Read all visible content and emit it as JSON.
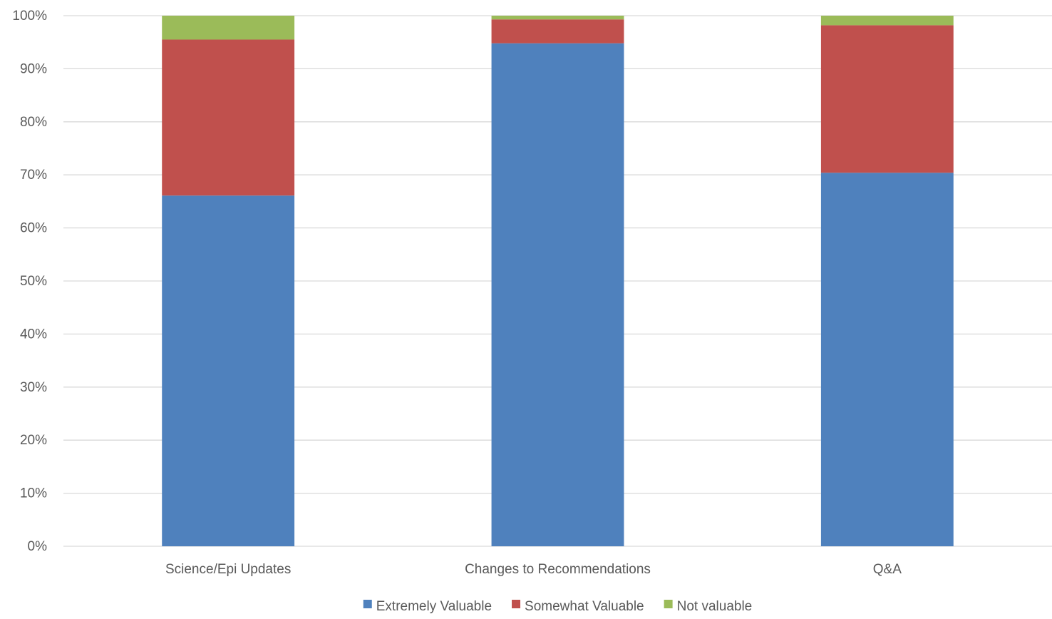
{
  "chart_data": {
    "type": "bar",
    "stacked": true,
    "percent_stacked": true,
    "title": "",
    "xlabel": "",
    "ylabel": "",
    "ylim": [
      0,
      100
    ],
    "y_ticks": [
      "0%",
      "10%",
      "20%",
      "30%",
      "40%",
      "50%",
      "60%",
      "70%",
      "80%",
      "90%",
      "100%"
    ],
    "grid": "horizontal",
    "legend_position": "bottom",
    "categories": [
      "Science/Epi Updates",
      "Changes to Recommendations",
      "Q&A"
    ],
    "series": [
      {
        "name": "Extremely Valuable",
        "color": "#4f81bd",
        "values": [
          66.1,
          94.8,
          70.4
        ]
      },
      {
        "name": "Somewhat Valuable",
        "color": "#c0504d",
        "values": [
          29.4,
          4.5,
          27.8
        ]
      },
      {
        "name": "Not valuable",
        "color": "#9bbb59",
        "values": [
          4.5,
          0.7,
          1.8
        ]
      }
    ]
  }
}
